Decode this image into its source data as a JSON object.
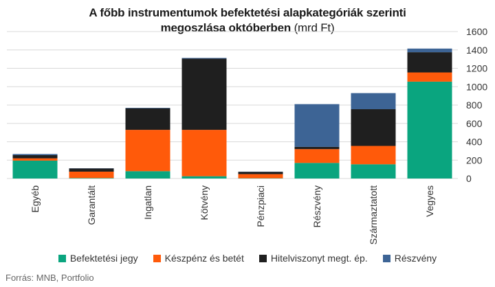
{
  "title_line1": "A főbb instrumentumok befektetési alapkategóriák szerinti",
  "title_line2": "megoszlása októberben",
  "title_unit": "(mrd Ft)",
  "source": "Forrás: MNB, Portfolio",
  "chart_data": {
    "type": "bar",
    "stacked": true,
    "categories": [
      "Egyéb",
      "Garantált",
      "Ingatlan",
      "Kötvény",
      "Pénzpiaci",
      "Részvény",
      "Származtatott",
      "Vegyes"
    ],
    "series": [
      {
        "name": "Befektetési jegy",
        "color": "#0aa57f",
        "values": [
          195,
          5,
          80,
          25,
          3,
          170,
          155,
          1055
        ]
      },
      {
        "name": "Készpénz és betét",
        "color": "#ff5a0a",
        "values": [
          25,
          70,
          450,
          505,
          45,
          150,
          200,
          100
        ]
      },
      {
        "name": "Hitelviszonyt megt. ép.",
        "color": "#1f1f1f",
        "values": [
          35,
          35,
          235,
          775,
          25,
          25,
          400,
          220
        ]
      },
      {
        "name": "Részvény",
        "color": "#3d6495",
        "values": [
          12,
          2,
          5,
          8,
          2,
          465,
          175,
          40
        ]
      }
    ],
    "ylim": [
      0,
      1600
    ],
    "yticks": [
      0,
      200,
      400,
      600,
      800,
      1000,
      1200,
      1400,
      1600
    ],
    "y_axis_side": "right",
    "grid": true,
    "legend": "bottom"
  }
}
